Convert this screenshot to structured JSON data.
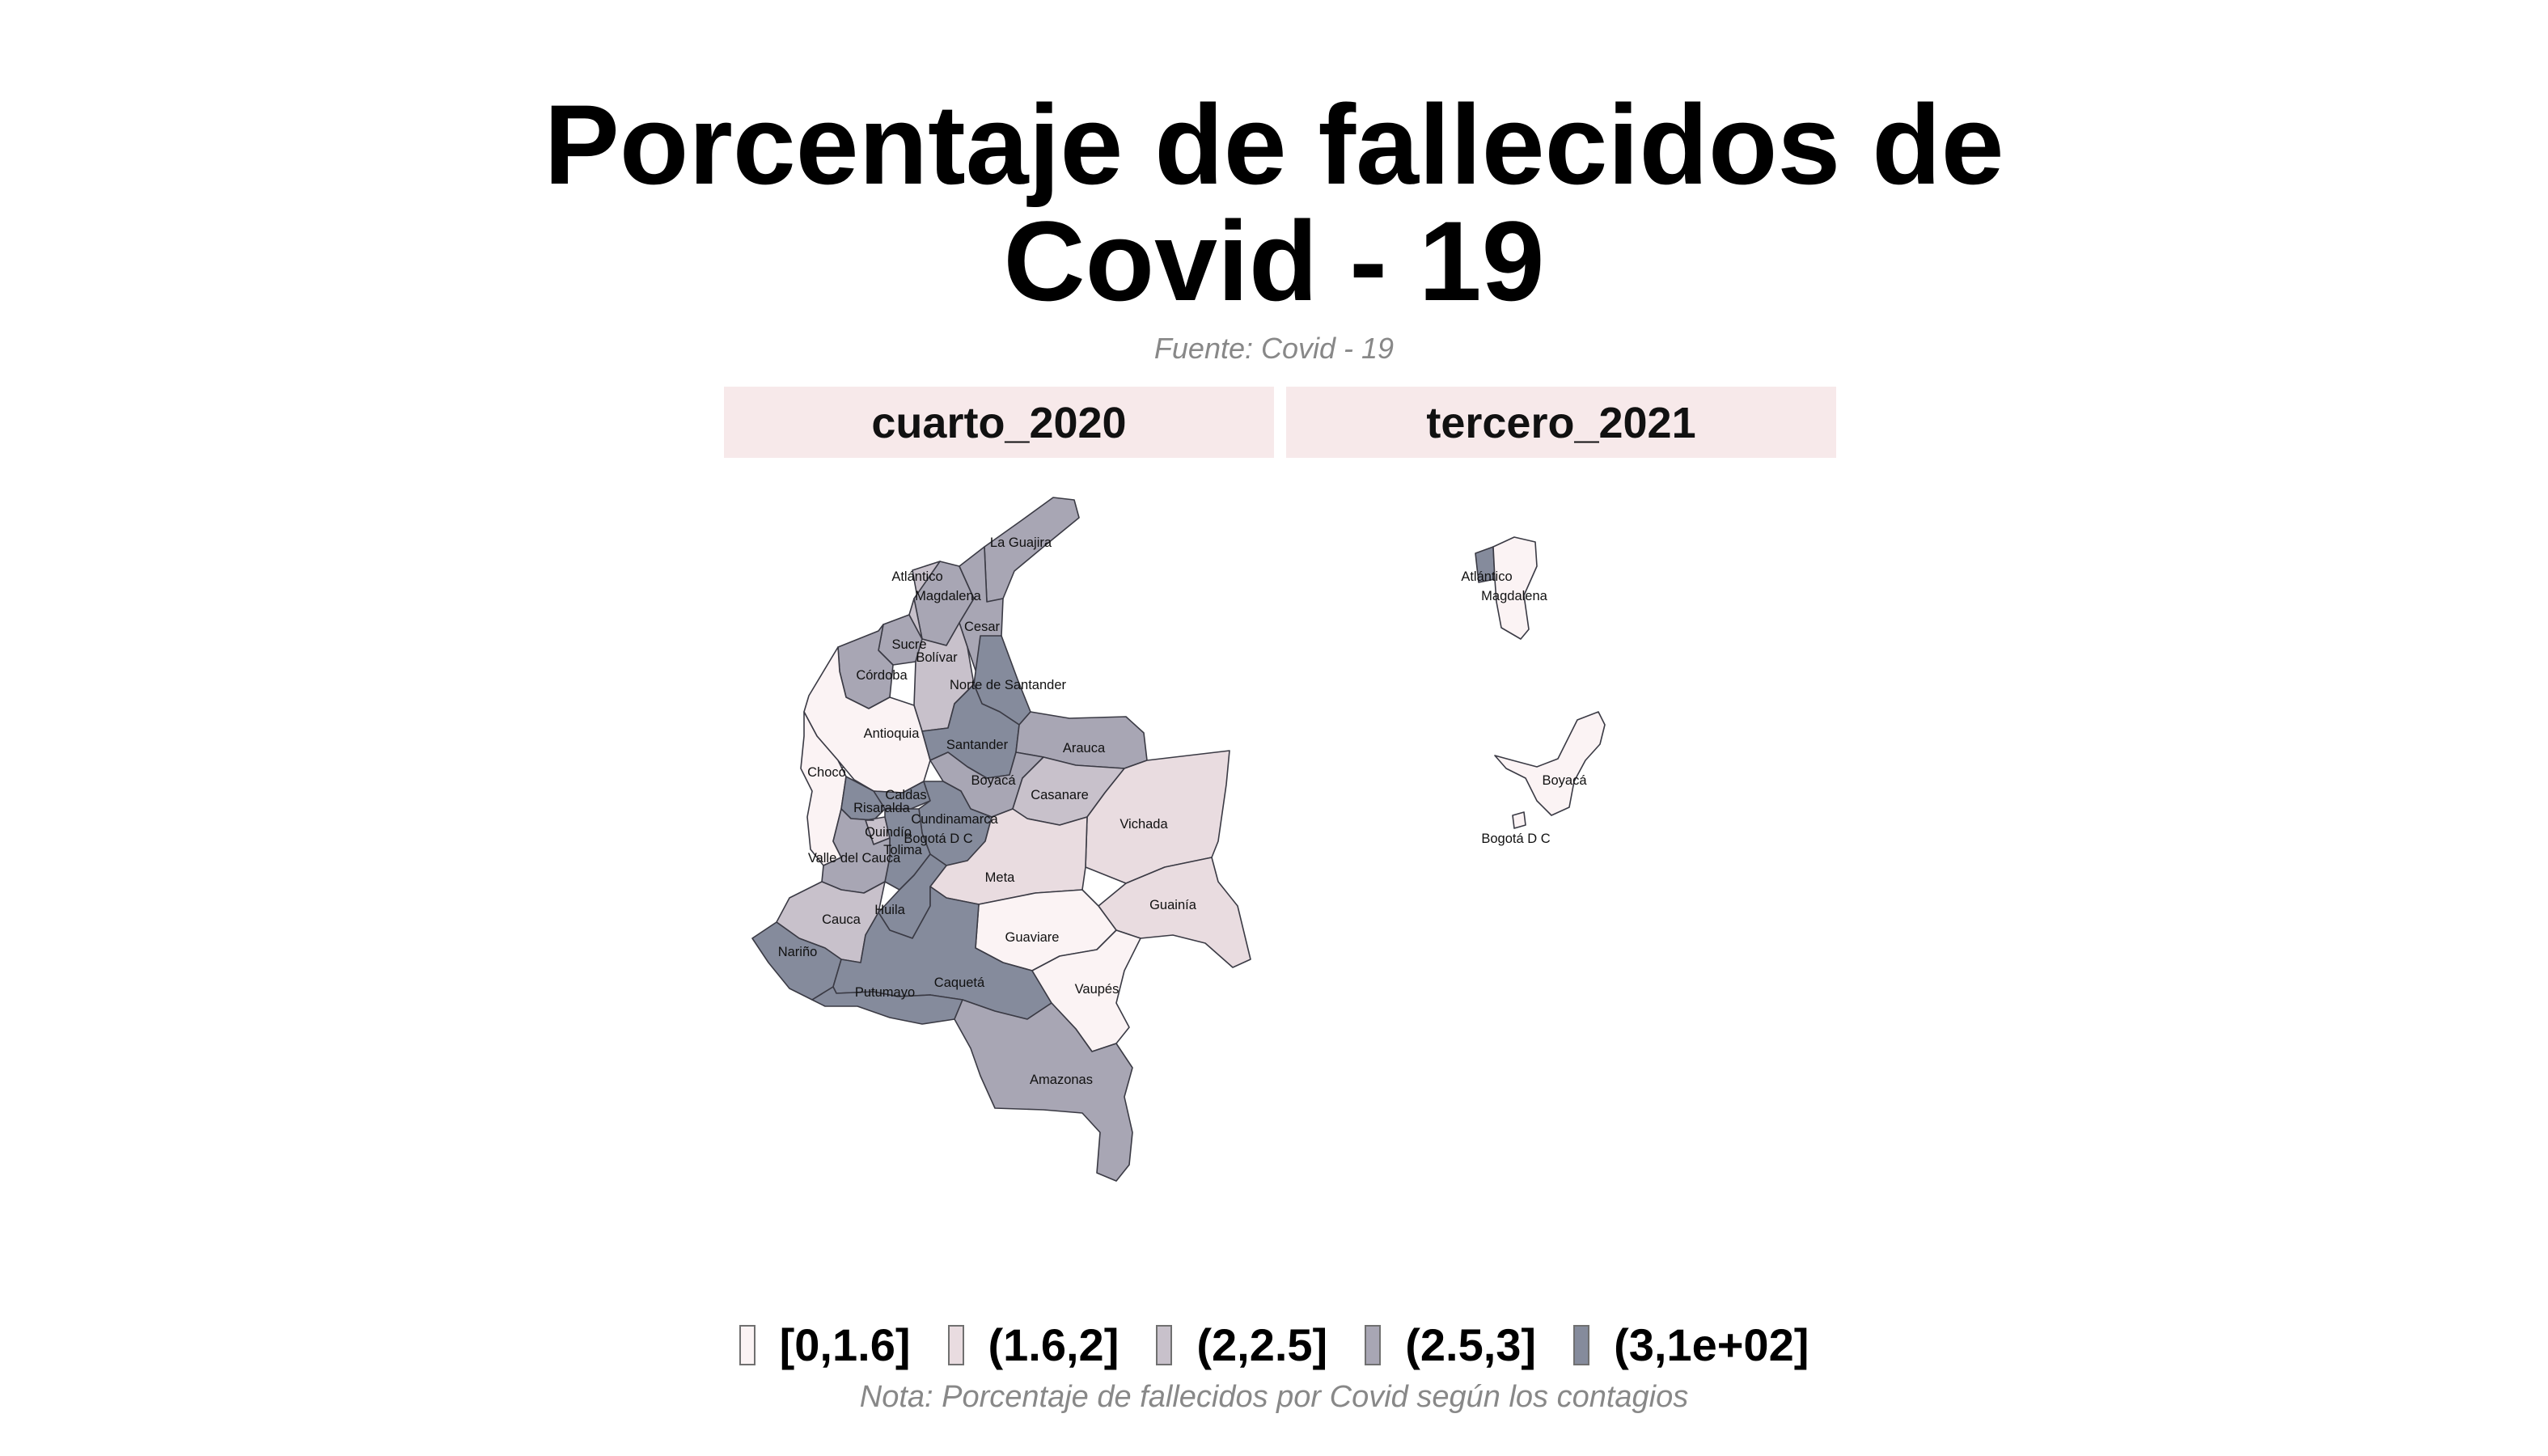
{
  "title_line1": "Porcentaje de fallecidos de",
  "title_line2": "Covid - 19",
  "subtitle": "Fuente: Covid - 19",
  "panels": [
    {
      "label": "cuarto_2020"
    },
    {
      "label": "tercero_2021"
    }
  ],
  "legend": [
    {
      "label": "[0,1.6]",
      "color": "#fbf3f4"
    },
    {
      "label": "(1.6,2]",
      "color": "#e9dce0"
    },
    {
      "label": "(2,2.5]",
      "color": "#c8c1cb"
    },
    {
      "label": "(2.5,3]",
      "color": "#a8a6b4"
    },
    {
      "label": "(3,1e+02]",
      "color": "#858b9c"
    }
  ],
  "caption": "Nota: Porcentaje de fallecidos por Covid según los contagios",
  "map_data": {
    "cuarto_2020": [
      {
        "name": "La Guajira",
        "class": 3
      },
      {
        "name": "Atlántico",
        "class": 2
      },
      {
        "name": "Magdalena",
        "class": 3
      },
      {
        "name": "Cesar",
        "class": 3
      },
      {
        "name": "Sucre",
        "class": 3
      },
      {
        "name": "Bolívar",
        "class": 2
      },
      {
        "name": "Córdoba",
        "class": 3
      },
      {
        "name": "Norte de Santander",
        "class": 4
      },
      {
        "name": "Antioquia",
        "class": 0
      },
      {
        "name": "Santander",
        "class": 4
      },
      {
        "name": "Arauca",
        "class": 3
      },
      {
        "name": "Chocó",
        "class": 0
      },
      {
        "name": "Boyacá",
        "class": 3
      },
      {
        "name": "Casanare",
        "class": 2
      },
      {
        "name": "Caldas",
        "class": 4
      },
      {
        "name": "Risaralda",
        "class": 4
      },
      {
        "name": "Cundinamarca",
        "class": 4
      },
      {
        "name": "Vichada",
        "class": 1
      },
      {
        "name": "Quindío",
        "class": 2
      },
      {
        "name": "Bogotá D C",
        "class": 4
      },
      {
        "name": "Tolima",
        "class": 4
      },
      {
        "name": "Valle del Cauca",
        "class": 3
      },
      {
        "name": "Meta",
        "class": 1
      },
      {
        "name": "Huila",
        "class": 4
      },
      {
        "name": "Guainía",
        "class": 1
      },
      {
        "name": "Cauca",
        "class": 2
      },
      {
        "name": "Guaviare",
        "class": 0
      },
      {
        "name": "Nariño",
        "class": 4
      },
      {
        "name": "Caquetá",
        "class": 4
      },
      {
        "name": "Putumayo",
        "class": 4
      },
      {
        "name": "Vaupés",
        "class": 0
      },
      {
        "name": "Amazonas",
        "class": 3
      }
    ],
    "tercero_2021": [
      {
        "name": "Atlántico",
        "class": 4
      },
      {
        "name": "Magdalena",
        "class": 0
      },
      {
        "name": "Boyacá",
        "class": 0
      },
      {
        "name": "Bogotá D C",
        "class": 0
      }
    ]
  }
}
